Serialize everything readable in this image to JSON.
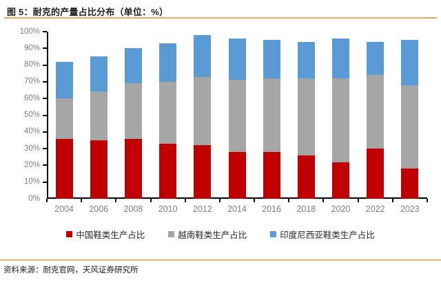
{
  "figure": {
    "title": "图 5：耐克的产量占比分布（单位：%）",
    "source": "资料来源：耐克官网，天风证券研究所"
  },
  "colors": {
    "china_red": "#c00000",
    "vietnam_gray": "#a6a6a6",
    "indonesia_blue": "#5b9bd5",
    "accent_orange": "#f0a45c",
    "axis_black": "#000000",
    "tick_label_gray": "#7f7f7f"
  },
  "chart_data": {
    "type": "bar",
    "stacked": true,
    "title": "耐克的产量占比分布（单位：%）",
    "xlabel": "",
    "ylabel": "",
    "ylim": [
      0,
      100
    ],
    "ytick_step": 10,
    "ytick_labels": [
      "0%",
      "10%",
      "20%",
      "30%",
      "40%",
      "50%",
      "60%",
      "70%",
      "80%",
      "90%",
      "100%"
    ],
    "grid": false,
    "legend_position": "bottom",
    "categories": [
      "2004",
      "2006",
      "2008",
      "2010",
      "2012",
      "2014",
      "2016",
      "2018",
      "2020",
      "2022",
      "2023"
    ],
    "series": [
      {
        "name": "中国鞋类生产占比",
        "color": "#c00000",
        "values": [
          36,
          35,
          36,
          33,
          32,
          28,
          28,
          26,
          22,
          30,
          18
        ]
      },
      {
        "name": "越南鞋类生产占比",
        "color": "#a6a6a6",
        "values": [
          24,
          29,
          33,
          37,
          41,
          43,
          44,
          46,
          50,
          44,
          50
        ]
      },
      {
        "name": "印度尼西亚鞋类生产占比",
        "color": "#5b9bd5",
        "values": [
          22,
          21,
          21,
          23,
          25,
          25,
          23,
          22,
          24,
          20,
          27
        ]
      }
    ]
  }
}
